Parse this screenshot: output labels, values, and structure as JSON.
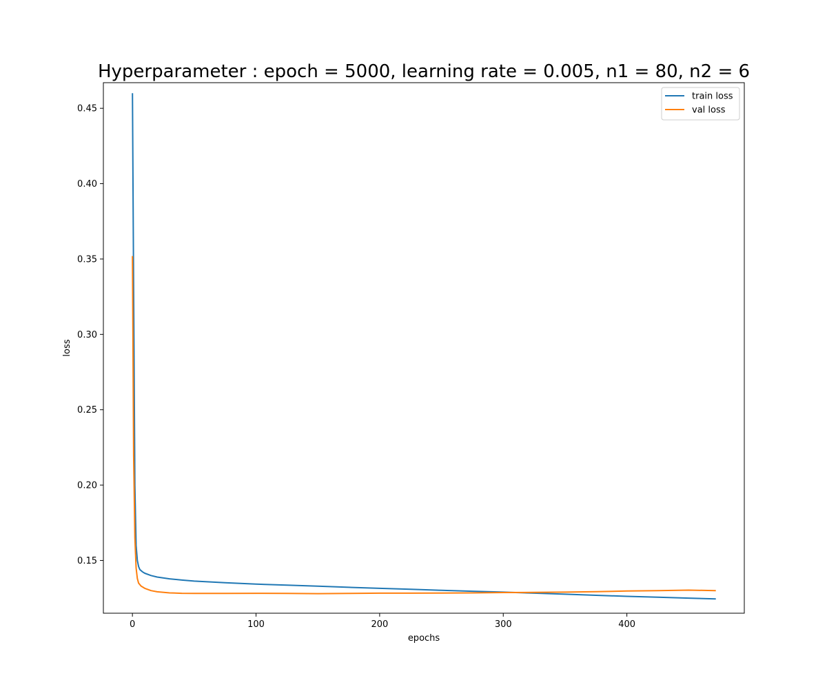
{
  "chart_data": {
    "type": "line",
    "title": "Hyperparameter : epoch = 5000, learning rate = 0.005, n1 = 80, n2 = 6",
    "xlabel": "epochs",
    "ylabel": "loss",
    "xlim": [
      -23.5,
      495
    ],
    "ylim": [
      0.115,
      0.467
    ],
    "xticks": [
      0,
      100,
      200,
      300,
      400
    ],
    "yticks": [
      0.15,
      0.2,
      0.25,
      0.3,
      0.35,
      0.4,
      0.45
    ],
    "grid": false,
    "legend_position": "upper right",
    "series": [
      {
        "name": "train loss",
        "color": "#1f77b4",
        "points": [
          [
            0,
            0.46
          ],
          [
            1,
            0.33
          ],
          [
            2,
            0.2
          ],
          [
            3,
            0.16
          ],
          [
            4,
            0.15
          ],
          [
            5,
            0.146
          ],
          [
            6,
            0.144
          ],
          [
            8,
            0.1425
          ],
          [
            10,
            0.1415
          ],
          [
            15,
            0.14
          ],
          [
            20,
            0.139
          ],
          [
            30,
            0.1378
          ],
          [
            40,
            0.137
          ],
          [
            50,
            0.1363
          ],
          [
            75,
            0.1352
          ],
          [
            100,
            0.1343
          ],
          [
            125,
            0.1336
          ],
          [
            150,
            0.1329
          ],
          [
            175,
            0.1322
          ],
          [
            200,
            0.1315
          ],
          [
            225,
            0.1309
          ],
          [
            250,
            0.1302
          ],
          [
            275,
            0.1296
          ],
          [
            300,
            0.129
          ],
          [
            325,
            0.1283
          ],
          [
            350,
            0.1276
          ],
          [
            375,
            0.1269
          ],
          [
            400,
            0.1262
          ],
          [
            425,
            0.1256
          ],
          [
            450,
            0.125
          ],
          [
            472,
            0.1245
          ]
        ]
      },
      {
        "name": "val loss",
        "color": "#ff7f0e",
        "points": [
          [
            0,
            0.352
          ],
          [
            1,
            0.22
          ],
          [
            2,
            0.165
          ],
          [
            3,
            0.145
          ],
          [
            4,
            0.138
          ],
          [
            5,
            0.135
          ],
          [
            7,
            0.133
          ],
          [
            10,
            0.1315
          ],
          [
            15,
            0.13
          ],
          [
            20,
            0.1292
          ],
          [
            30,
            0.1285
          ],
          [
            40,
            0.1282
          ],
          [
            50,
            0.1281
          ],
          [
            75,
            0.1281
          ],
          [
            100,
            0.1282
          ],
          [
            125,
            0.1281
          ],
          [
            150,
            0.128
          ],
          [
            175,
            0.1281
          ],
          [
            200,
            0.1283
          ],
          [
            225,
            0.1283
          ],
          [
            250,
            0.1284
          ],
          [
            275,
            0.1285
          ],
          [
            300,
            0.1287
          ],
          [
            325,
            0.1288
          ],
          [
            350,
            0.129
          ],
          [
            375,
            0.1293
          ],
          [
            400,
            0.1297
          ],
          [
            425,
            0.13
          ],
          [
            450,
            0.1303
          ],
          [
            472,
            0.13
          ]
        ]
      }
    ]
  }
}
